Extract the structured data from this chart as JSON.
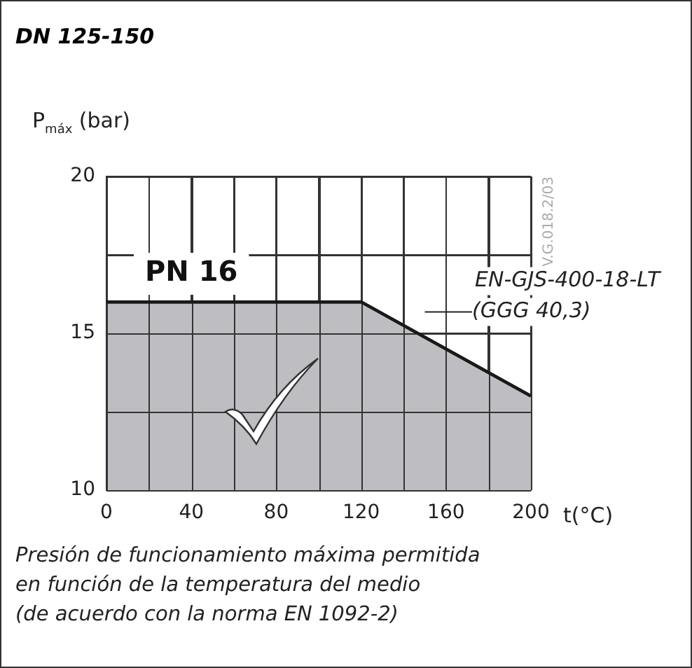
{
  "chart_data": {
    "type": "area",
    "title": "DN 125-150",
    "ylabel": "P$_{máx}$ (bar)",
    "xlabel": "t(°C)",
    "x": [
      0,
      120,
      200
    ],
    "series": [
      {
        "name": "EN-GJS-400-18-LT (GGG 40,3)",
        "color": "#bebec2",
        "values": [
          16,
          16,
          13
        ]
      }
    ],
    "xlim": [
      0,
      200
    ],
    "xticks": [
      0,
      {
        "value": 20,
        "label": null
      },
      40,
      {
        "value": 60,
        "label": null
      },
      80,
      {
        "value": 100,
        "label": null
      },
      120,
      {
        "value": 140,
        "label": null
      },
      160,
      {
        "value": 180,
        "label": null
      },
      200
    ],
    "ylim": [
      10,
      20
    ],
    "yticks": [
      10,
      {
        "value": 12.5,
        "label": null
      },
      15,
      {
        "value": 17.5,
        "label": null
      },
      20
    ],
    "grid": true,
    "legend": false,
    "marker": "none",
    "annotations": [
      "PN 16",
      "V.G.018.2/03",
      "Presión de funcionamiento máxima permitida",
      "en función de la temperatura del medio",
      "(de acuerdo con la norma EN 1092-2)"
    ]
  }
}
